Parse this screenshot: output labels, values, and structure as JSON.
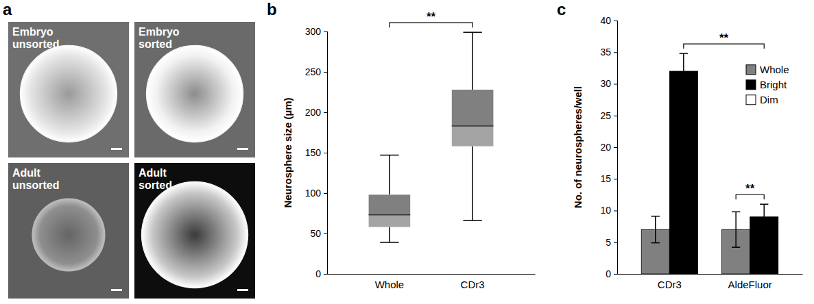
{
  "chart_data": [
    {
      "type": "image_grid",
      "label": "a",
      "images": [
        {
          "label": "Embryo unsorted"
        },
        {
          "label": "Embryo sorted"
        },
        {
          "label": "Adult unsorted"
        },
        {
          "label": "Adult sorted"
        }
      ]
    },
    {
      "type": "box",
      "label": "b",
      "categories": [
        "Whole",
        "CDr3"
      ],
      "y_label": "Neurosphere size (µm)",
      "boxes": [
        {
          "min": 39,
          "q1": 58,
          "median": 73,
          "q3": 98,
          "max": 147
        },
        {
          "min": 66,
          "q1": 158,
          "median": 183,
          "q3": 228,
          "max": 299
        }
      ],
      "color": "#808080",
      "ylim": [
        0,
        300
      ],
      "yticks": [
        0,
        50,
        100,
        150,
        200,
        250,
        300
      ],
      "grid": false,
      "annotations": [
        {
          "text": "**",
          "from": "Whole",
          "to": "CDr3"
        }
      ]
    },
    {
      "type": "bar",
      "label": "c",
      "categories": [
        "CDr3",
        "AldeFluor"
      ],
      "y_label": "No. of neurospheres/well",
      "series": [
        {
          "name": "Whole",
          "color": "#808080",
          "values": [
            7,
            7
          ],
          "errors": [
            2.1,
            2.8
          ]
        },
        {
          "name": "Bright",
          "color": "#000000",
          "values": [
            32,
            9
          ],
          "errors": [
            2.8,
            2
          ]
        },
        {
          "name": "Dim",
          "color": "#ffffff",
          "values": [
            null,
            null
          ],
          "errors": [
            null,
            null
          ]
        }
      ],
      "ylim": [
        0,
        40
      ],
      "yticks": [
        0,
        5,
        10,
        15,
        20,
        25,
        30,
        35,
        40
      ],
      "grid": false,
      "legend": "top-right",
      "annotations": [
        {
          "text": "**",
          "from": {
            "category": "CDr3",
            "series": "Bright"
          },
          "to": {
            "category": "AldeFluor",
            "series": "Bright"
          }
        },
        {
          "text": "**",
          "from": {
            "category": "AldeFluor",
            "series": "Whole"
          },
          "to": {
            "category": "AldeFluor",
            "series": "Bright"
          }
        }
      ]
    }
  ]
}
